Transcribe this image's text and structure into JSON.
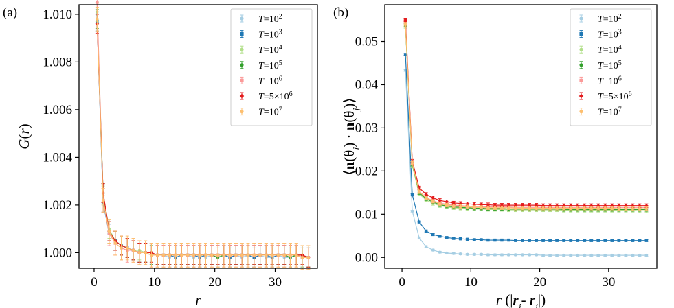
{
  "chart_data": [
    {
      "type": "line",
      "panel_label": "(a)",
      "xlabel": "r",
      "ylabel": "G(r)",
      "xlim": [
        -2.5,
        37
      ],
      "ylim": [
        0.99935,
        1.0104
      ],
      "xticks": [
        "0",
        "10",
        "20",
        "30"
      ],
      "yticks": [
        "1.000",
        "1.002",
        "1.004",
        "1.006",
        "1.008",
        "1.010"
      ],
      "xtick_values": [
        0,
        10,
        20,
        30
      ],
      "ytick_values": [
        1.0,
        1.002,
        1.004,
        1.006,
        1.008,
        1.01
      ],
      "legend_position": "top-right",
      "x": [
        0.5,
        1.5,
        2.5,
        3.5,
        4.5,
        5.5,
        6.5,
        7.5,
        8.5,
        9.5,
        10.5,
        11.5,
        12.5,
        13.5,
        14.5,
        15.5,
        16.5,
        17.5,
        18.5,
        19.5,
        20.5,
        21.5,
        22.5,
        23.5,
        24.5,
        25.5,
        26.5,
        27.5,
        28.5,
        29.5,
        30.5,
        31.5,
        32.5,
        33.5,
        34.5,
        35.5
      ],
      "series": [
        {
          "name": "T=10²",
          "color": "#a6cee3",
          "marker": "circle",
          "err": 0.0004,
          "values": [
            1.01,
            1.0021,
            1.0009,
            1.0005,
            1.0003,
            1.0002,
            1.0001,
            1.0,
            1.0,
            0.9999,
            0.9999,
            0.9999,
            0.9998,
            0.9999,
            0.9999,
            0.9999,
            0.9998,
            0.9999,
            0.9998,
            0.9999,
            0.9999,
            0.9999,
            0.9998,
            0.9999,
            0.9998,
            0.9999,
            0.9998,
            0.9999,
            0.9998,
            0.9998,
            0.9999,
            0.9998,
            0.9998,
            0.9999,
            0.9998,
            0.9998
          ]
        },
        {
          "name": "T=10³",
          "color": "#1f78b4",
          "marker": "square",
          "err": 0.0004,
          "values": [
            1.0097,
            1.0021,
            1.0008,
            1.0005,
            1.0003,
            1.0002,
            1.0001,
            1.0,
            1.0,
            0.9999,
            0.9999,
            0.9999,
            0.9999,
            0.9998,
            0.9999,
            0.9999,
            0.9999,
            0.9998,
            0.9999,
            0.9999,
            0.9999,
            0.9999,
            0.9998,
            0.9999,
            0.9999,
            0.9999,
            0.9998,
            0.9999,
            0.9999,
            0.9998,
            0.9999,
            0.9999,
            0.9998,
            0.9999,
            0.9998,
            0.9998
          ]
        },
        {
          "name": "T=10⁴",
          "color": "#b2df8a",
          "marker": "circle",
          "err": 0.0004,
          "values": [
            1.0101,
            1.0024,
            1.001,
            1.0005,
            1.0003,
            1.0002,
            1.0001,
            1.0001,
            1.0,
            1.0,
            0.9999,
            0.9999,
            0.9999,
            0.9999,
            0.9999,
            0.9999,
            0.9999,
            0.9999,
            0.9999,
            0.9999,
            0.9999,
            0.9999,
            0.9999,
            0.9999,
            0.9999,
            0.9999,
            0.9999,
            0.9999,
            0.9999,
            0.9999,
            0.9999,
            0.9999,
            0.9999,
            0.9999,
            0.9998,
            0.9998
          ]
        },
        {
          "name": "T=10⁵",
          "color": "#33a02c",
          "marker": "circle",
          "err": 0.0004,
          "values": [
            1.0098,
            1.0025,
            1.0009,
            1.0005,
            1.0003,
            1.0002,
            1.0001,
            1.0,
            1.0,
            0.9999,
            0.9999,
            0.9999,
            0.9999,
            0.9999,
            0.9999,
            0.9999,
            0.9999,
            0.9999,
            0.9999,
            0.9999,
            0.9998,
            0.9999,
            0.9999,
            0.9999,
            0.9999,
            0.9999,
            0.9999,
            0.9999,
            0.9999,
            0.9999,
            0.9999,
            0.9999,
            0.9998,
            0.9999,
            0.9999,
            0.9998
          ]
        },
        {
          "name": "T=10⁶",
          "color": "#fb9a99",
          "marker": "square",
          "err": 0.0005,
          "values": [
            1.0105,
            1.0022,
            1.0008,
            1.0004,
            1.0002,
            1.0001,
            1.0001,
            1.0,
            1.0,
            0.9999,
            0.9999,
            0.9999,
            0.9999,
            0.9999,
            0.9999,
            0.9999,
            0.9999,
            0.9999,
            0.9999,
            0.9999,
            0.9999,
            0.9999,
            0.9999,
            0.9999,
            0.9999,
            0.9999,
            0.9999,
            0.9999,
            0.9999,
            0.9999,
            0.9999,
            0.9999,
            0.9999,
            0.9999,
            0.9998,
            0.9998
          ]
        },
        {
          "name": "T=5×10⁶",
          "color": "#e31a1c",
          "marker": "diamond",
          "err": 0.0004,
          "values": [
            1.0096,
            1.0025,
            1.0009,
            1.0005,
            1.0003,
            1.0002,
            1.0001,
            1.0,
            1.0,
            1.0,
            0.9999,
            0.9999,
            0.9999,
            0.9999,
            0.9999,
            0.9999,
            0.9999,
            0.9999,
            0.9999,
            0.9999,
            0.9999,
            0.9999,
            0.9999,
            0.9999,
            0.9999,
            0.9999,
            0.9999,
            0.9999,
            0.9999,
            0.9999,
            0.9999,
            0.9999,
            0.9999,
            0.9999,
            0.9999,
            0.9998
          ]
        },
        {
          "name": "T=10⁷",
          "color": "#fdbf6f",
          "marker": "circle",
          "err": 0.0005,
          "values": [
            1.0098,
            1.0022,
            1.0009,
            1.0004,
            1.0002,
            1.0002,
            1.0001,
            1.0,
            1.0,
            0.9999,
            0.9999,
            0.9999,
            0.9999,
            0.9999,
            0.9999,
            0.9999,
            0.9999,
            0.9999,
            0.9999,
            0.9999,
            0.9999,
            0.9999,
            0.9999,
            0.9999,
            0.9999,
            0.9999,
            0.9999,
            0.9999,
            0.9999,
            0.9999,
            0.9999,
            0.9999,
            0.9999,
            0.9999,
            0.9998,
            0.9998
          ]
        }
      ]
    },
    {
      "type": "line",
      "panel_label": "(b)",
      "xlabel": "r (|ri- rj|)",
      "ylabel": "⟨n(θi) · n(θj)⟩",
      "xlim": [
        -2.5,
        37
      ],
      "ylim": [
        -0.0025,
        0.0585
      ],
      "xticks": [
        "0",
        "10",
        "20",
        "30"
      ],
      "yticks": [
        "0.00",
        "0.01",
        "0.02",
        "0.03",
        "0.04",
        "0.05"
      ],
      "xtick_values": [
        0,
        10,
        20,
        30
      ],
      "ytick_values": [
        0.0,
        0.01,
        0.02,
        0.03,
        0.04,
        0.05
      ],
      "legend_position": "top-right",
      "x": [
        0.5,
        1.5,
        2.5,
        3.5,
        4.5,
        5.5,
        6.5,
        7.5,
        8.5,
        9.5,
        10.5,
        11.5,
        12.5,
        13.5,
        14.5,
        15.5,
        16.5,
        17.5,
        18.5,
        19.5,
        20.5,
        21.5,
        22.5,
        23.5,
        24.5,
        25.5,
        26.5,
        27.5,
        28.5,
        29.5,
        30.5,
        31.5,
        32.5,
        33.5,
        34.5,
        35.5
      ],
      "series": [
        {
          "name": "T=10²",
          "color": "#a6cee3",
          "marker": "circle",
          "err": 0.0002,
          "values": [
            0.0433,
            0.0107,
            0.0045,
            0.0025,
            0.0017,
            0.0012,
            0.001,
            0.0009,
            0.0008,
            0.0007,
            0.0007,
            0.0007,
            0.0006,
            0.0006,
            0.0006,
            0.0006,
            0.0006,
            0.0006,
            0.0006,
            0.0006,
            0.0005,
            0.0005,
            0.0005,
            0.0005,
            0.0005,
            0.0005,
            0.0005,
            0.0005,
            0.0005,
            0.0005,
            0.0005,
            0.0005,
            0.0005,
            0.0005,
            0.0005,
            0.0005
          ]
        },
        {
          "name": "T=10³",
          "color": "#1f78b4",
          "marker": "square",
          "err": 0.0002,
          "values": [
            0.047,
            0.0145,
            0.0082,
            0.0061,
            0.0053,
            0.0049,
            0.0046,
            0.0044,
            0.0043,
            0.0042,
            0.0041,
            0.0041,
            0.004,
            0.004,
            0.004,
            0.004,
            0.0039,
            0.0039,
            0.0039,
            0.0039,
            0.0039,
            0.0039,
            0.0039,
            0.0039,
            0.0039,
            0.0039,
            0.0039,
            0.0039,
            0.0039,
            0.0039,
            0.0039,
            0.0039,
            0.0039,
            0.0039,
            0.0039,
            0.0039
          ]
        },
        {
          "name": "T=10⁴",
          "color": "#b2df8a",
          "marker": "circle",
          "err": 0.0004,
          "values": [
            0.0535,
            0.0212,
            0.0147,
            0.0133,
            0.0125,
            0.012,
            0.0117,
            0.0115,
            0.0114,
            0.0113,
            0.0112,
            0.0112,
            0.0111,
            0.0111,
            0.0111,
            0.011,
            0.011,
            0.011,
            0.011,
            0.011,
            0.011,
            0.011,
            0.011,
            0.0109,
            0.0109,
            0.0109,
            0.0109,
            0.0109,
            0.0109,
            0.0109,
            0.0109,
            0.0109,
            0.0109,
            0.0109,
            0.0108,
            0.0108
          ]
        },
        {
          "name": "T=10⁵",
          "color": "#33a02c",
          "marker": "circle",
          "err": 0.0004,
          "values": [
            0.0538,
            0.0216,
            0.015,
            0.0136,
            0.0128,
            0.0122,
            0.0119,
            0.0117,
            0.0116,
            0.0115,
            0.0114,
            0.0114,
            0.0113,
            0.0113,
            0.0113,
            0.0112,
            0.0112,
            0.0112,
            0.0112,
            0.0112,
            0.0112,
            0.0112,
            0.0112,
            0.0111,
            0.0111,
            0.0111,
            0.0111,
            0.0111,
            0.0111,
            0.0111,
            0.0111,
            0.0111,
            0.0111,
            0.0111,
            0.0111,
            0.0111
          ]
        },
        {
          "name": "T=10⁶",
          "color": "#fb9a99",
          "marker": "square",
          "err": 0.0004,
          "values": [
            0.0545,
            0.0219,
            0.0153,
            0.0139,
            0.0131,
            0.0126,
            0.0123,
            0.0121,
            0.012,
            0.0119,
            0.0118,
            0.0118,
            0.0117,
            0.0117,
            0.0117,
            0.0117,
            0.0116,
            0.0116,
            0.0116,
            0.0116,
            0.0116,
            0.0116,
            0.0116,
            0.0116,
            0.0116,
            0.0116,
            0.0116,
            0.0116,
            0.0116,
            0.0116,
            0.0116,
            0.0116,
            0.0116,
            0.0116,
            0.0116,
            0.0116
          ]
        },
        {
          "name": "T=5×10⁶",
          "color": "#e31a1c",
          "marker": "diamond",
          "err": 0.0004,
          "values": [
            0.055,
            0.0223,
            0.0161,
            0.0146,
            0.0138,
            0.0132,
            0.0129,
            0.0126,
            0.0125,
            0.0124,
            0.0123,
            0.0122,
            0.0122,
            0.0121,
            0.0121,
            0.0121,
            0.0121,
            0.0121,
            0.0121,
            0.0121,
            0.012,
            0.012,
            0.012,
            0.012,
            0.012,
            0.012,
            0.012,
            0.012,
            0.012,
            0.012,
            0.012,
            0.012,
            0.012,
            0.012,
            0.012,
            0.012
          ]
        },
        {
          "name": "T=10⁷",
          "color": "#fdbf6f",
          "marker": "circle",
          "err": 0.0004,
          "values": [
            0.054,
            0.0218,
            0.0152,
            0.0138,
            0.013,
            0.0124,
            0.0121,
            0.0119,
            0.0118,
            0.0117,
            0.0116,
            0.0116,
            0.0115,
            0.0115,
            0.0115,
            0.0115,
            0.0114,
            0.0114,
            0.0114,
            0.0114,
            0.0114,
            0.0114,
            0.0114,
            0.0114,
            0.0114,
            0.0114,
            0.0114,
            0.0114,
            0.0114,
            0.0114,
            0.0114,
            0.0113,
            0.0113,
            0.0113,
            0.0113,
            0.0113
          ]
        }
      ]
    }
  ]
}
